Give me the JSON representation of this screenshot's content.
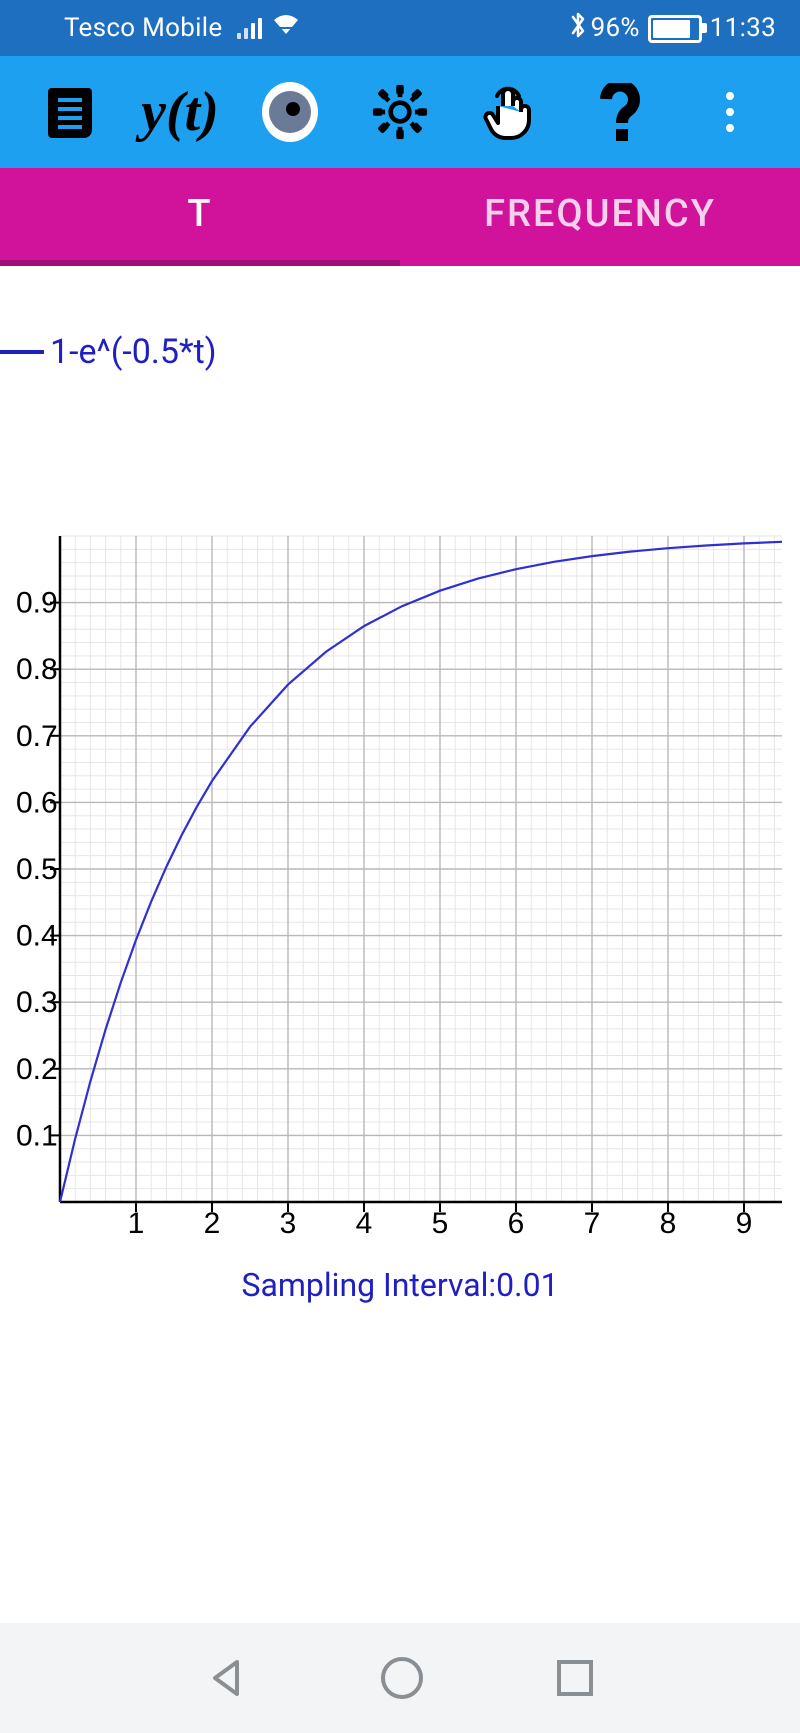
{
  "status": {
    "carrier": "Tesco Mobile",
    "battery_pct": "96%",
    "time": "11:33",
    "bluetooth_glyph": "✱",
    "bg_color": "#1e6fbf",
    "fg_color": "#ffffff"
  },
  "appbar": {
    "bg_color": "#1ea0f0",
    "yt_label": "y(t)"
  },
  "tabs": {
    "t_label": "T",
    "freq_label": "FREQUENCY",
    "bg_color": "#d1139c",
    "active_index": 0
  },
  "legend": {
    "expression": "1-e^(-0.5*t)",
    "color": "#2020c0",
    "fontsize": 34
  },
  "chart": {
    "type": "line",
    "xlim": [
      0,
      9.5
    ],
    "ylim": [
      0,
      1.0
    ],
    "xtick_labels": [
      "1",
      "2",
      "3",
      "4",
      "5",
      "6",
      "7",
      "8",
      "9"
    ],
    "xtick_values": [
      1,
      2,
      3,
      4,
      5,
      6,
      7,
      8,
      9
    ],
    "ytick_labels": [
      "0.1",
      "0.2",
      "0.3",
      "0.4",
      "0.5",
      "0.6",
      "0.7",
      "0.8",
      "0.9"
    ],
    "ytick_values": [
      0.1,
      0.2,
      0.3,
      0.4,
      0.5,
      0.6,
      0.7,
      0.8,
      0.9
    ],
    "tick_fontsize": 30,
    "axis_color": "#000000",
    "grid_major_color": "#b8b8b8",
    "grid_minor_color": "#e6e6e6",
    "minor_per_major_x": 5,
    "minor_per_major_y": 5,
    "line_color": "#3030d0",
    "line_width": 2.2,
    "background_color": "#ffffff",
    "series": {
      "t": [
        0,
        0.2,
        0.4,
        0.6,
        0.8,
        1.0,
        1.2,
        1.4,
        1.6,
        1.8,
        2.0,
        2.5,
        3.0,
        3.5,
        4.0,
        4.5,
        5.0,
        5.5,
        6.0,
        6.5,
        7.0,
        7.5,
        8.0,
        8.5,
        9.0,
        9.5
      ],
      "y": [
        0,
        0.0952,
        0.1813,
        0.2592,
        0.3297,
        0.3935,
        0.4512,
        0.5034,
        0.5507,
        0.5934,
        0.6321,
        0.7135,
        0.7769,
        0.8262,
        0.8647,
        0.8946,
        0.9179,
        0.9361,
        0.9502,
        0.9613,
        0.9698,
        0.9765,
        0.9817,
        0.9857,
        0.9889,
        0.9913
      ]
    }
  },
  "sampling": {
    "label_prefix": "Sampling Interval:",
    "value": "0.01",
    "color": "#2020c0",
    "fontsize": 32
  }
}
